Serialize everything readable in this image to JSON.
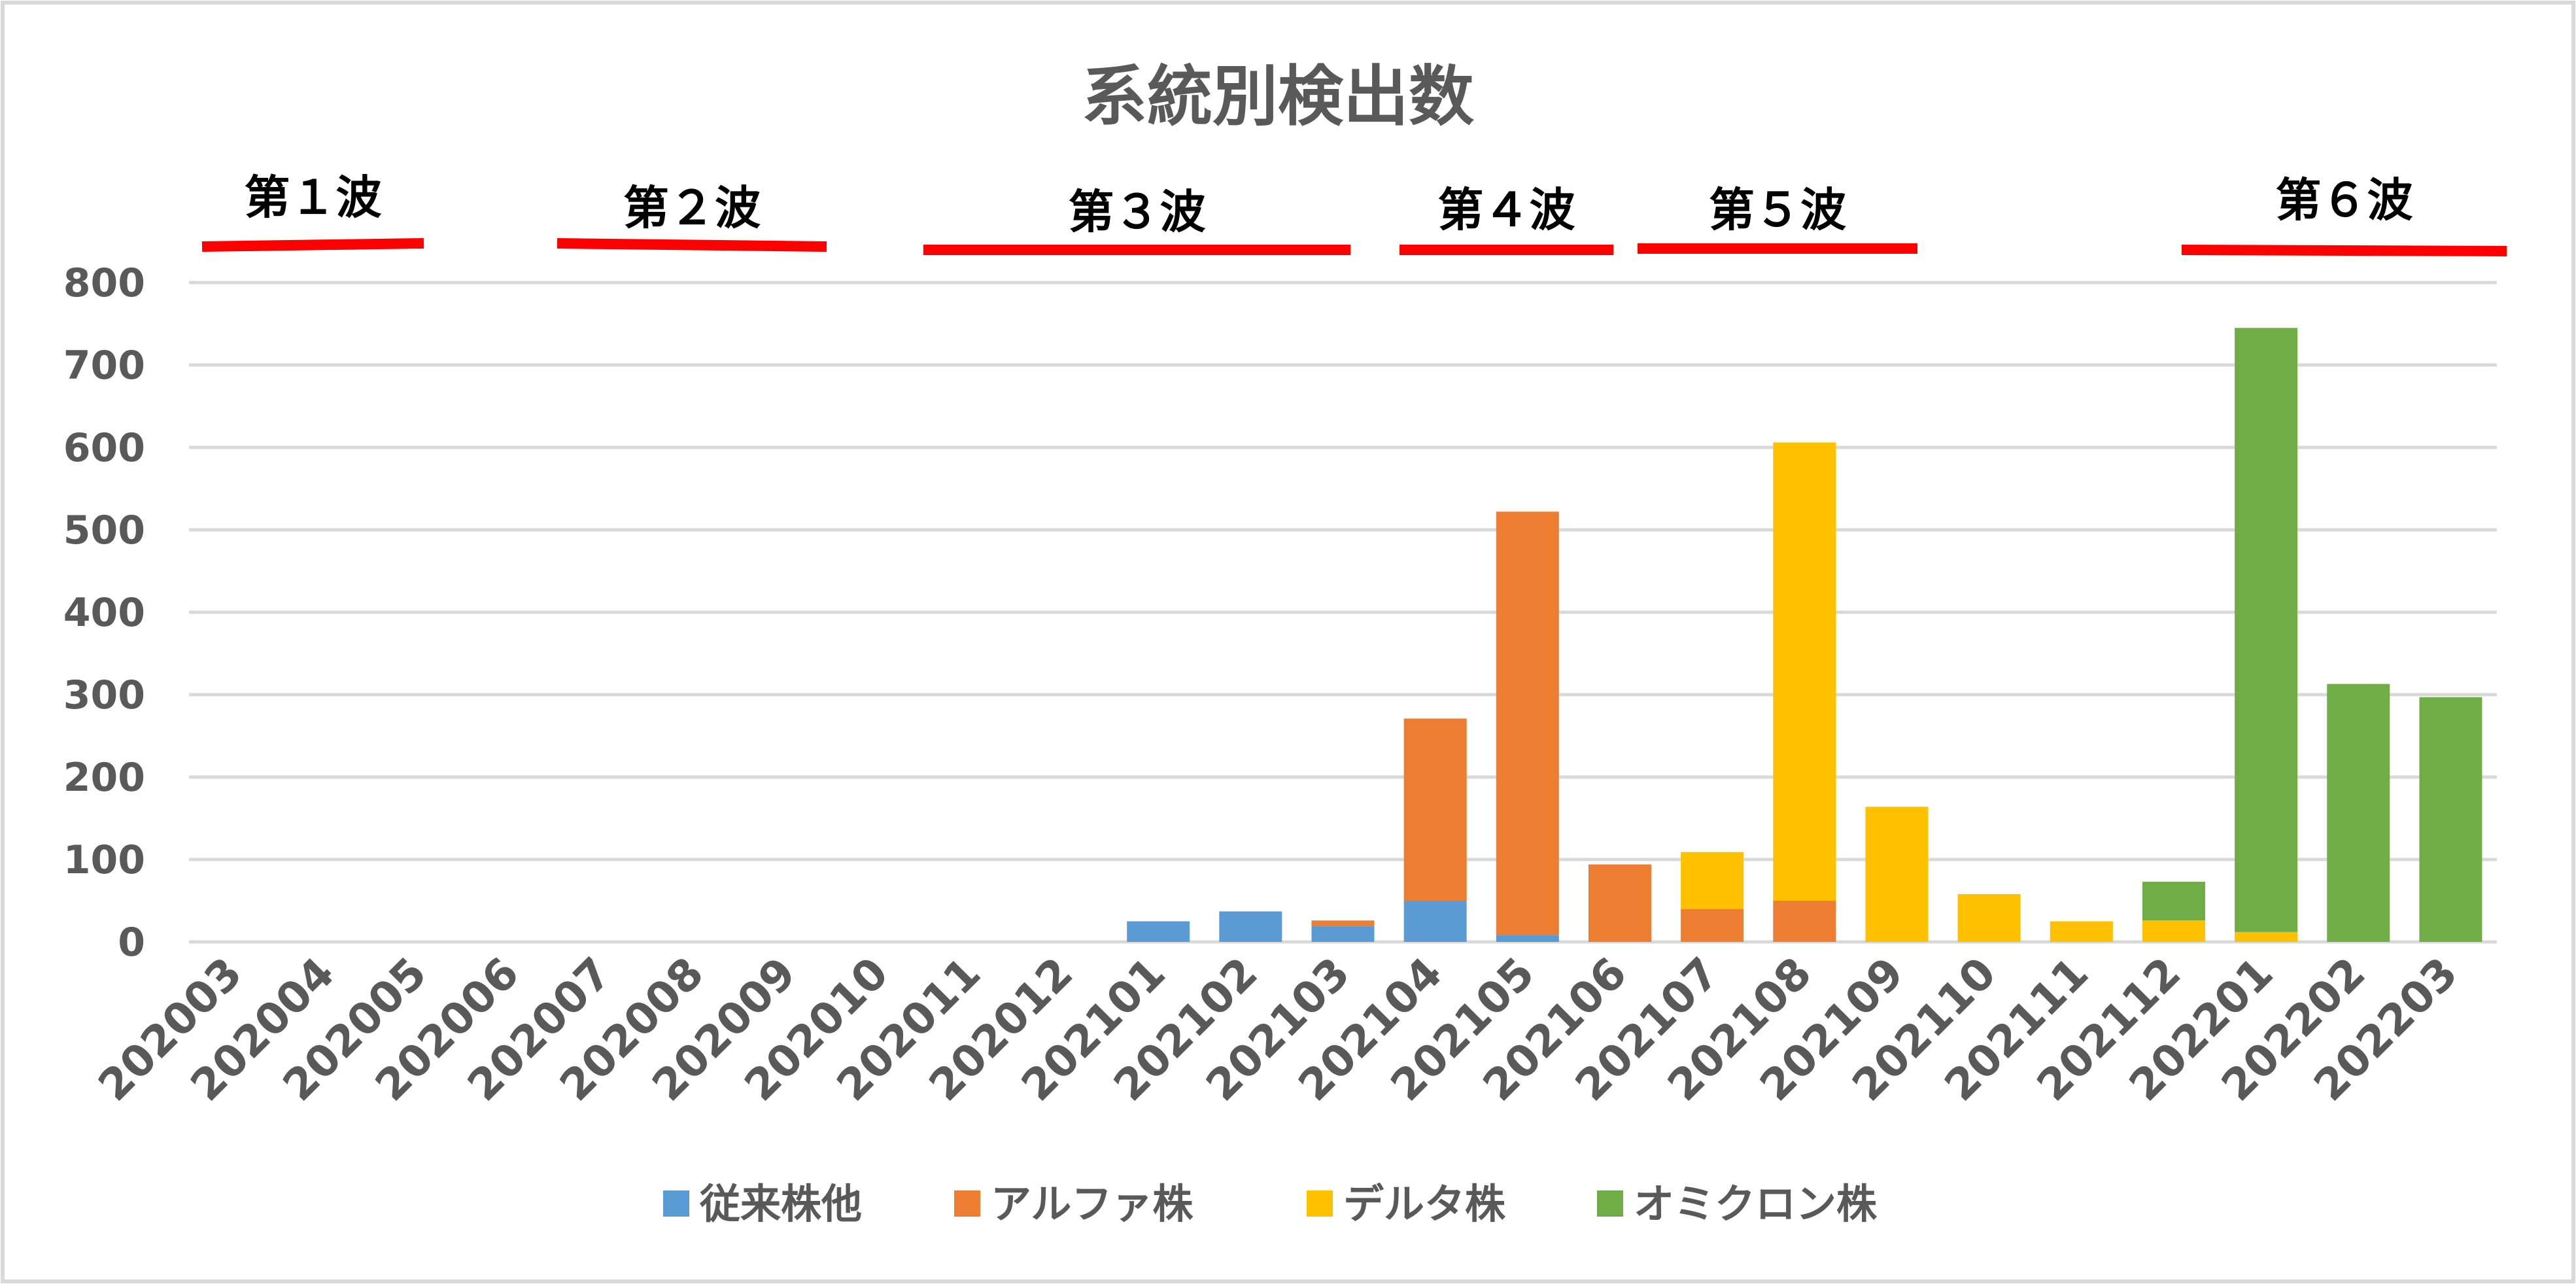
{
  "chart_data": {
    "type": "bar",
    "stacked": true,
    "title": "系統別検出数",
    "xlabel": "",
    "ylabel": "",
    "ylim": [
      0,
      800
    ],
    "yticks": [
      0,
      100,
      200,
      300,
      400,
      500,
      600,
      700,
      800
    ],
    "grid": true,
    "legend_position": "bottom",
    "categories": [
      "202003",
      "202004",
      "202005",
      "202006",
      "202007",
      "202008",
      "202009",
      "202010",
      "202011",
      "202012",
      "202101",
      "202102",
      "202103",
      "202104",
      "202105",
      "202106",
      "202107",
      "202108",
      "202109",
      "202110",
      "202111",
      "202112",
      "202201",
      "202202",
      "202203"
    ],
    "series": [
      {
        "name": "従来株他",
        "color": "#5B9BD5",
        "values": [
          0,
          0,
          0,
          0,
          0,
          0,
          0,
          0,
          0,
          0,
          25,
          37,
          19,
          50,
          8,
          0,
          0,
          0,
          0,
          0,
          0,
          0,
          0,
          0,
          0
        ]
      },
      {
        "name": "アルファ株",
        "color": "#ED7D31",
        "values": [
          0,
          0,
          0,
          0,
          0,
          0,
          0,
          0,
          0,
          0,
          0,
          0,
          7,
          221,
          514,
          94,
          40,
          50,
          0,
          0,
          0,
          0,
          0,
          0,
          0
        ]
      },
      {
        "name": "デルタ株",
        "color": "#FFC000",
        "values": [
          0,
          0,
          0,
          0,
          0,
          0,
          0,
          0,
          0,
          0,
          0,
          0,
          0,
          0,
          0,
          0,
          69,
          556,
          164,
          58,
          25,
          26,
          12,
          0,
          0
        ]
      },
      {
        "name": "オミクロン株",
        "color": "#70AD47",
        "values": [
          0,
          0,
          0,
          0,
          0,
          0,
          0,
          0,
          0,
          0,
          0,
          0,
          0,
          0,
          0,
          0,
          0,
          0,
          0,
          0,
          0,
          47,
          733,
          313,
          297
        ]
      }
    ],
    "annotations": [
      {
        "label": "第１波",
        "from": "202003",
        "to": "202005"
      },
      {
        "label": "第２波",
        "from": "202007",
        "to": "202009"
      },
      {
        "label": "第３波",
        "from": "202011",
        "to": "202103"
      },
      {
        "label": "第４波",
        "from": "202104",
        "to": "202105"
      },
      {
        "label": "第５波",
        "from": "202106",
        "to": "202108"
      },
      {
        "label": "第６波",
        "from": "202112",
        "to": "202203"
      }
    ],
    "annotation_color": "#FF0000"
  }
}
